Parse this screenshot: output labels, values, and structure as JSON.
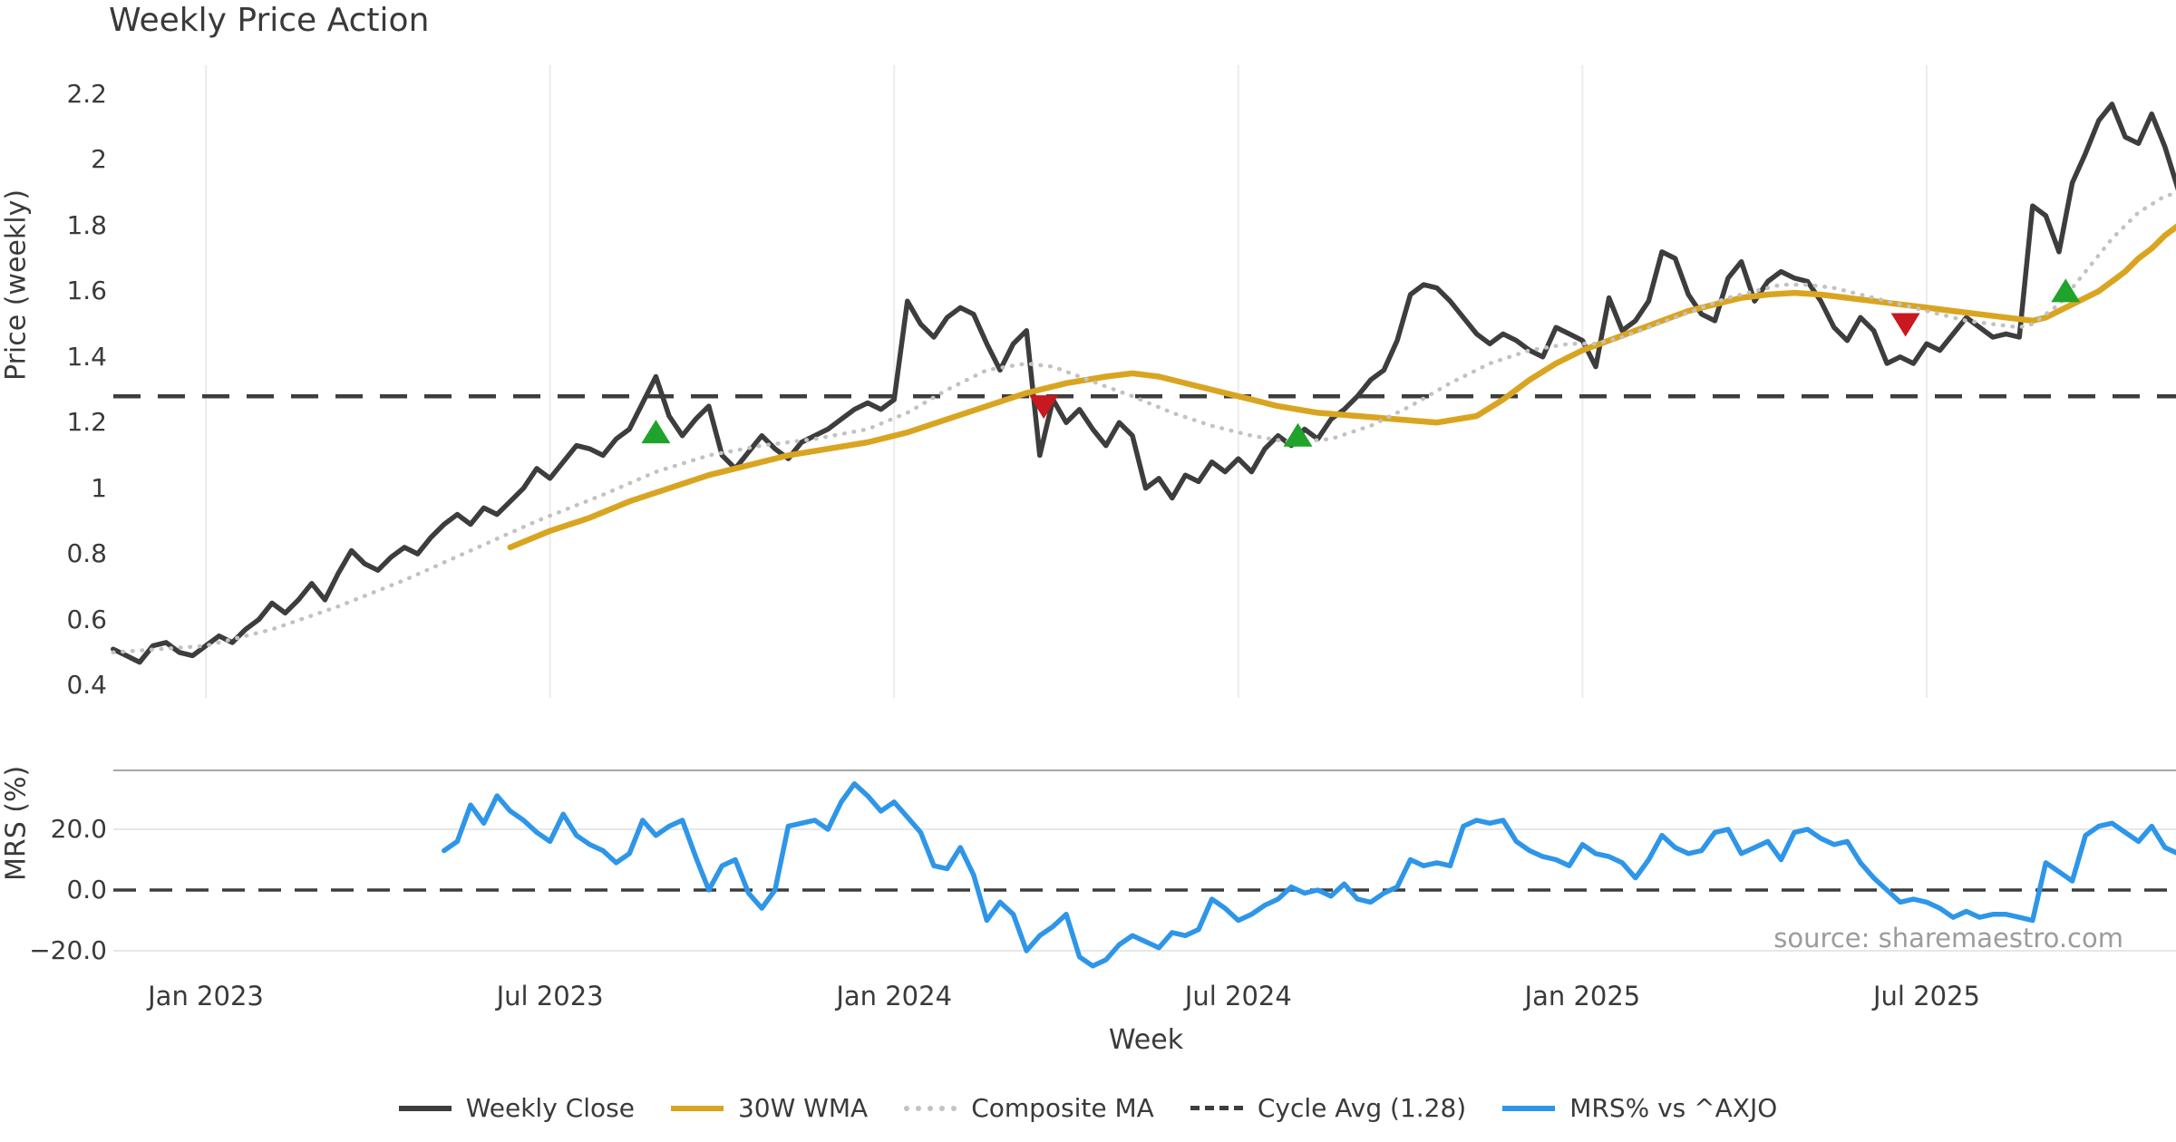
{
  "title": "Weekly Price Action",
  "x_axis_label": "Week",
  "source_note": "source: sharemaestro.com",
  "price_panel": {
    "ylabel": "Price (weekly)",
    "ylim": [
      0.4,
      2.2
    ],
    "tick_values": [
      2.2,
      2.0,
      1.8,
      1.6,
      1.4,
      1.2,
      1.0,
      0.8,
      0.6,
      0.4
    ],
    "tick_labels": [
      "2.2",
      "2",
      "1.8",
      "1.6",
      "1.4",
      "1.2",
      "1",
      "0.8",
      "0.6",
      "0.4"
    ]
  },
  "mrs_panel": {
    "ylabel": "MRS (%)",
    "tick_values": [
      20,
      0,
      -20
    ],
    "tick_labels": [
      "20.0",
      "0.0",
      "−20.0"
    ]
  },
  "legend": [
    {
      "label": "Weekly Close",
      "style": "solid",
      "color": "#3d3d3d"
    },
    {
      "label": "30W WMA",
      "style": "solid",
      "color": "#d9a521"
    },
    {
      "label": "Composite MA",
      "style": "dotted",
      "color": "#c2c2c2"
    },
    {
      "label": "Cycle Avg (1.28)",
      "style": "dashed",
      "color": "#3d3d3d"
    },
    {
      "label": "MRS% vs ^AXJO",
      "style": "solid",
      "color": "#2e96e8"
    }
  ],
  "colors": {
    "close": "#3d3d3d",
    "wma": "#d9a521",
    "composite": "#c2c2c2",
    "cycle": "#3d3d3d",
    "mrs": "#2e96e8",
    "buy_marker": "#1fa32a",
    "sell_marker": "#c9181f",
    "gridline": "#ececec",
    "mrs_gridline": "#e7e7e7",
    "spine": "#a6a6a6"
  },
  "chart_data": {
    "type": "line",
    "week0_date": "2023-01-02",
    "x_axis": {
      "tick_weeks": [
        0,
        26,
        52,
        78,
        104,
        130
      ],
      "tick_labels": [
        "Jan 2023",
        "Jul 2023",
        "Jan 2024",
        "Jul 2024",
        "Jan 2025",
        "Jul 2025"
      ]
    },
    "cycle_avg": 1.28,
    "series": [
      {
        "name": "Weekly Close",
        "panel": "price",
        "style": "solid",
        "width": 5.5,
        "start_week": -7,
        "step_weeks": 1,
        "values": [
          0.51,
          0.49,
          0.47,
          0.52,
          0.53,
          0.5,
          0.49,
          0.52,
          0.55,
          0.53,
          0.57,
          0.6,
          0.65,
          0.62,
          0.66,
          0.71,
          0.66,
          0.74,
          0.81,
          0.77,
          0.75,
          0.79,
          0.82,
          0.8,
          0.85,
          0.89,
          0.92,
          0.89,
          0.94,
          0.92,
          0.96,
          1.0,
          1.06,
          1.03,
          1.08,
          1.13,
          1.12,
          1.1,
          1.15,
          1.18,
          1.26,
          1.34,
          1.22,
          1.16,
          1.21,
          1.25,
          1.1,
          1.06,
          1.11,
          1.16,
          1.12,
          1.09,
          1.14,
          1.16,
          1.18,
          1.21,
          1.24,
          1.26,
          1.24,
          1.27,
          1.57,
          1.5,
          1.46,
          1.52,
          1.55,
          1.53,
          1.44,
          1.36,
          1.44,
          1.48,
          1.1,
          1.27,
          1.2,
          1.24,
          1.18,
          1.13,
          1.2,
          1.16,
          1.0,
          1.03,
          0.97,
          1.04,
          1.02,
          1.08,
          1.05,
          1.09,
          1.05,
          1.12,
          1.16,
          1.13,
          1.18,
          1.15,
          1.21,
          1.24,
          1.28,
          1.33,
          1.36,
          1.45,
          1.59,
          1.62,
          1.61,
          1.57,
          1.52,
          1.47,
          1.44,
          1.47,
          1.45,
          1.42,
          1.4,
          1.49,
          1.47,
          1.45,
          1.37,
          1.58,
          1.48,
          1.51,
          1.57,
          1.72,
          1.7,
          1.59,
          1.53,
          1.51,
          1.64,
          1.69,
          1.57,
          1.63,
          1.66,
          1.64,
          1.63,
          1.57,
          1.49,
          1.45,
          1.52,
          1.48,
          1.38,
          1.4,
          1.38,
          1.44,
          1.42,
          1.47,
          1.52,
          1.49,
          1.46,
          1.47,
          1.46,
          1.86,
          1.83,
          1.72,
          1.93,
          2.02,
          2.12,
          2.17,
          2.07,
          2.05,
          2.14,
          2.04,
          1.91
        ]
      },
      {
        "name": "30W WMA",
        "panel": "price",
        "style": "solid",
        "width": 6.5,
        "points": [
          [
            23,
            0.82
          ],
          [
            26,
            0.87
          ],
          [
            29,
            0.91
          ],
          [
            32,
            0.96
          ],
          [
            35,
            1.0
          ],
          [
            38,
            1.04
          ],
          [
            41,
            1.07
          ],
          [
            44,
            1.1
          ],
          [
            47,
            1.12
          ],
          [
            50,
            1.14
          ],
          [
            53,
            1.17
          ],
          [
            56,
            1.21
          ],
          [
            59,
            1.25
          ],
          [
            62,
            1.29
          ],
          [
            65,
            1.32
          ],
          [
            68,
            1.34
          ],
          [
            70,
            1.35
          ],
          [
            72,
            1.34
          ],
          [
            75,
            1.31
          ],
          [
            78,
            1.28
          ],
          [
            81,
            1.25
          ],
          [
            84,
            1.23
          ],
          [
            87,
            1.22
          ],
          [
            90,
            1.21
          ],
          [
            93,
            1.2
          ],
          [
            96,
            1.22
          ],
          [
            98,
            1.27
          ],
          [
            100,
            1.33
          ],
          [
            102,
            1.38
          ],
          [
            104,
            1.42
          ],
          [
            106,
            1.45
          ],
          [
            108,
            1.48
          ],
          [
            110,
            1.51
          ],
          [
            112,
            1.54
          ],
          [
            114,
            1.56
          ],
          [
            116,
            1.58
          ],
          [
            118,
            1.59
          ],
          [
            120,
            1.595
          ],
          [
            122,
            1.59
          ],
          [
            124,
            1.58
          ],
          [
            126,
            1.57
          ],
          [
            128,
            1.56
          ],
          [
            130,
            1.55
          ],
          [
            132,
            1.54
          ],
          [
            134,
            1.53
          ],
          [
            136,
            1.52
          ],
          [
            138,
            1.51
          ],
          [
            139,
            1.52
          ],
          [
            140,
            1.54
          ],
          [
            141,
            1.56
          ],
          [
            142,
            1.58
          ],
          [
            143,
            1.6
          ],
          [
            144,
            1.63
          ],
          [
            145,
            1.66
          ],
          [
            146,
            1.7
          ],
          [
            147,
            1.73
          ],
          [
            148,
            1.77
          ],
          [
            149,
            1.8
          ]
        ]
      },
      {
        "name": "Composite MA",
        "panel": "price",
        "style": "dotted",
        "width": 4.5,
        "points": [
          [
            -7,
            0.5
          ],
          [
            0,
            0.52
          ],
          [
            5,
            0.57
          ],
          [
            10,
            0.64
          ],
          [
            15,
            0.72
          ],
          [
            20,
            0.81
          ],
          [
            25,
            0.9
          ],
          [
            30,
            0.98
          ],
          [
            34,
            1.05
          ],
          [
            38,
            1.1
          ],
          [
            42,
            1.13
          ],
          [
            46,
            1.15
          ],
          [
            50,
            1.18
          ],
          [
            53,
            1.23
          ],
          [
            56,
            1.3
          ],
          [
            59,
            1.36
          ],
          [
            62,
            1.38
          ],
          [
            64,
            1.37
          ],
          [
            66,
            1.34
          ],
          [
            68,
            1.31
          ],
          [
            70,
            1.28
          ],
          [
            73,
            1.23
          ],
          [
            76,
            1.19
          ],
          [
            79,
            1.16
          ],
          [
            82,
            1.14
          ],
          [
            85,
            1.15
          ],
          [
            88,
            1.19
          ],
          [
            91,
            1.25
          ],
          [
            94,
            1.32
          ],
          [
            97,
            1.38
          ],
          [
            100,
            1.42
          ],
          [
            103,
            1.44
          ],
          [
            105,
            1.44
          ],
          [
            107,
            1.46
          ],
          [
            109,
            1.49
          ],
          [
            111,
            1.52
          ],
          [
            113,
            1.55
          ],
          [
            115,
            1.58
          ],
          [
            117,
            1.6
          ],
          [
            119,
            1.62
          ],
          [
            121,
            1.62
          ],
          [
            123,
            1.61
          ],
          [
            125,
            1.59
          ],
          [
            127,
            1.57
          ],
          [
            129,
            1.55
          ],
          [
            131,
            1.53
          ],
          [
            133,
            1.51
          ],
          [
            135,
            1.5
          ],
          [
            137,
            1.49
          ],
          [
            138,
            1.5
          ],
          [
            140,
            1.56
          ],
          [
            142,
            1.66
          ],
          [
            144,
            1.76
          ],
          [
            146,
            1.84
          ],
          [
            148,
            1.89
          ],
          [
            149,
            1.9
          ]
        ]
      },
      {
        "name": "MRS% vs ^AXJO",
        "panel": "mrs",
        "style": "solid",
        "width": 5.5,
        "start_week": 18,
        "step_weeks": 1,
        "values": [
          13,
          16,
          28,
          22,
          31,
          26,
          23,
          19,
          16,
          25,
          18,
          15,
          13,
          9,
          12,
          23,
          18,
          21,
          23,
          11,
          0,
          8,
          10,
          -1,
          -6,
          0,
          21,
          22,
          23,
          20,
          29,
          35,
          31,
          26,
          29,
          24,
          19,
          8,
          7,
          14,
          5,
          -10,
          -4,
          -8,
          -20,
          -15,
          -12,
          -8,
          -22,
          -25,
          -23,
          -18,
          -15,
          -17,
          -19,
          -14,
          -15,
          -13,
          -3,
          -6,
          -10,
          -8,
          -5,
          -3,
          1,
          -1,
          0,
          -2,
          2,
          -3,
          -4,
          -1,
          1,
          10,
          8,
          9,
          8,
          21,
          23,
          22,
          23,
          16,
          13,
          11,
          10,
          8,
          15,
          12,
          11,
          9,
          4,
          10,
          18,
          14,
          12,
          13,
          19,
          20,
          12,
          14,
          16,
          10,
          19,
          20,
          17,
          15,
          16,
          9,
          4,
          0,
          -4,
          -3,
          -4,
          -6,
          -9,
          -7,
          -9,
          -8,
          -8,
          -9,
          -10,
          9,
          6,
          3,
          18,
          21,
          22,
          19,
          16,
          21,
          14,
          12
        ]
      }
    ],
    "markers": [
      {
        "type": "buy",
        "shape": "triangle-up",
        "week": 34,
        "price": 1.17
      },
      {
        "type": "sell",
        "shape": "triangle-down",
        "week": 63.3,
        "price": 1.25
      },
      {
        "type": "buy",
        "shape": "triangle-up",
        "week": 82.5,
        "price": 1.16
      },
      {
        "type": "sell",
        "shape": "triangle-down",
        "week": 128.4,
        "price": 1.5
      },
      {
        "type": "buy",
        "shape": "triangle-up",
        "week": 140.5,
        "price": 1.6
      }
    ]
  }
}
